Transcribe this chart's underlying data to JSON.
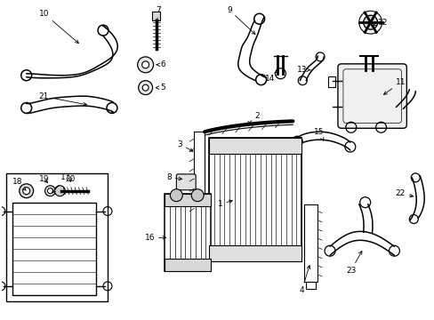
{
  "bg_color": "#ffffff",
  "fig_width": 4.89,
  "fig_height": 3.6,
  "dpi": 100,
  "label_fs": 6.5,
  "arrow_lw": 0.6
}
